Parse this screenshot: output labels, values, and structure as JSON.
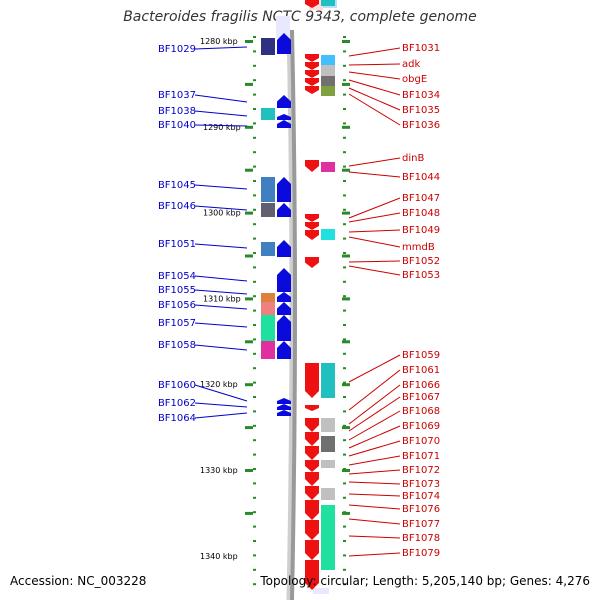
{
  "title": "Bacteroides fragilis NCTC 9343, complete genome",
  "accession": "Accession: NC_003228",
  "topology": "Topology: circular; Length: 5,205,140 bp; Genes: 4,276",
  "colors": {
    "forward": "#0a0adc",
    "reverse": "#ee1111",
    "forward_label": "#0000cc",
    "reverse_label": "#cc0000",
    "tick": "#2a8a2a",
    "backbone": "#999999"
  },
  "scale_labels": [
    {
      "text": "1280 kbp",
      "pos": 1280
    },
    {
      "text": "1290 kbp",
      "pos": 1290
    },
    {
      "text": "1300 kbp",
      "pos": 1300
    },
    {
      "text": "1310 kbp",
      "pos": 1310
    },
    {
      "text": "1320 kbp",
      "pos": 1320
    },
    {
      "text": "1330 kbp",
      "pos": 1330
    },
    {
      "text": "1340 kbp",
      "pos": 1340
    }
  ],
  "forward_genes": [
    {
      "name": "BF1029"
    },
    {
      "name": "BF1037"
    },
    {
      "name": "BF1038"
    },
    {
      "name": "BF1040"
    },
    {
      "name": "BF1045"
    },
    {
      "name": "BF1046"
    },
    {
      "name": "BF1051"
    },
    {
      "name": "BF1054"
    },
    {
      "name": "BF1055"
    },
    {
      "name": "BF1056"
    },
    {
      "name": "BF1057"
    },
    {
      "name": "BF1058"
    },
    {
      "name": "BF1060"
    },
    {
      "name": "BF1062"
    },
    {
      "name": "BF1064"
    }
  ],
  "reverse_genes": [
    {
      "name": "BF1031"
    },
    {
      "name": "adk"
    },
    {
      "name": "obgE"
    },
    {
      "name": "BF1034"
    },
    {
      "name": "BF1035"
    },
    {
      "name": "BF1036"
    },
    {
      "name": "dinB"
    },
    {
      "name": "BF1044"
    },
    {
      "name": "BF1047"
    },
    {
      "name": "BF1048"
    },
    {
      "name": "BF1049"
    },
    {
      "name": "mmdB"
    },
    {
      "name": "BF1052"
    },
    {
      "name": "BF1053"
    },
    {
      "name": "BF1059"
    },
    {
      "name": "BF1061"
    },
    {
      "name": "BF1066"
    },
    {
      "name": "BF1067"
    },
    {
      "name": "BF1068"
    },
    {
      "name": "BF1069"
    },
    {
      "name": "BF1070"
    },
    {
      "name": "BF1071"
    },
    {
      "name": "BF1072"
    },
    {
      "name": "BF1073"
    },
    {
      "name": "BF1074"
    },
    {
      "name": "BF1076"
    },
    {
      "name": "BF1077"
    },
    {
      "name": "BF1078"
    },
    {
      "name": "BF1079"
    }
  ]
}
